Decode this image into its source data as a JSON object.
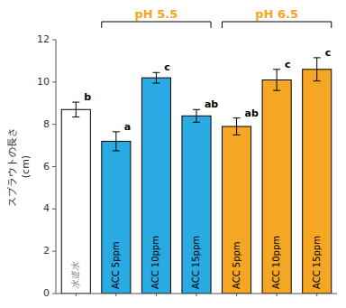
{
  "chart_data": {
    "type": "bar",
    "categories": [
      "水道水",
      "ACC 5ppm",
      "ACC 10ppm",
      "ACC 15ppm",
      "ACC 5ppm",
      "ACC 10ppm",
      "ACC 15ppm"
    ],
    "values": [
      8.7,
      7.2,
      10.2,
      8.4,
      7.9,
      10.1,
      10.6
    ],
    "errors": [
      0.35,
      0.45,
      0.25,
      0.3,
      0.4,
      0.5,
      0.55
    ],
    "letters": [
      "b",
      "a",
      "c",
      "ab",
      "ab",
      "c",
      "c"
    ],
    "colors": [
      "#ffffff",
      "#29aae2",
      "#29aae2",
      "#29aae2",
      "#f5a623",
      "#f5a623",
      "#f5a623"
    ],
    "edgecolor": "#000000",
    "groups": [
      null,
      "pH 5.5",
      "pH 5.5",
      "pH 5.5",
      "pH 6.5",
      "pH 6.5",
      "pH 6.5"
    ],
    "group_label_color": "#f5a623",
    "bracket_color": "#000000",
    "ylabel": "スプラウトの長さ",
    "ylabel_unit": "(cm)",
    "ylim": [
      0,
      12
    ],
    "yticks": [
      0,
      2,
      4,
      6,
      8,
      10,
      12
    ]
  }
}
